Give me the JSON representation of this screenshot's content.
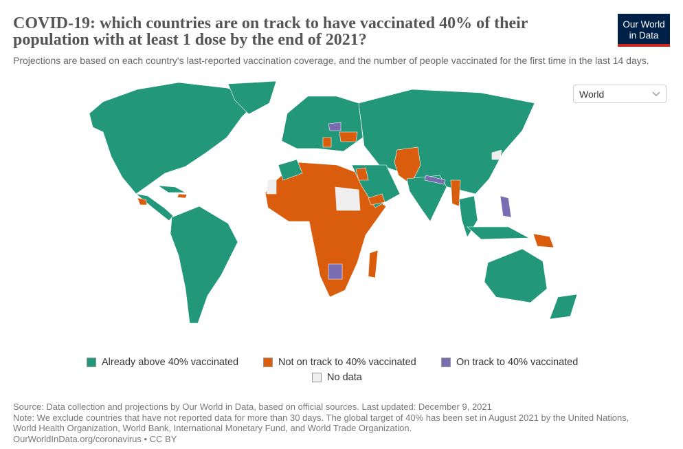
{
  "header": {
    "title": "COVID-19: which countries are on track to have vaccinated 40% of their population with at least 1 dose by the end of 2021?",
    "subtitle": "Projections are based on each country's last-reported vaccination coverage, and the number of people vaccinated for the first time in the last 14 days.",
    "logo": [
      "Our World",
      "in Data"
    ]
  },
  "controls": {
    "region": "World"
  },
  "legend": [
    {
      "label": "Already above 40% vaccinated",
      "color": "#23977a"
    },
    {
      "label": "Not on track to 40% vaccinated",
      "color": "#d95d0d"
    },
    {
      "label": "On track to 40% vaccinated",
      "color": "#7a6cb1"
    },
    {
      "label": "No data",
      "color": "#eeeeee"
    }
  ],
  "footer": {
    "source": "Source: Data collection and projections by Our World in Data, based on official sources. Last updated: December 9, 2021",
    "note": "Note: We exclude countries that have not reported data for more than 30 days. The global target of 40% has been set in August 2021 by the United Nations, World Health Organization, World Bank, International Monetary Fund, and World Trade Organization.",
    "link": "OurWorldInData.org/coronavirus • CC BY"
  }
}
